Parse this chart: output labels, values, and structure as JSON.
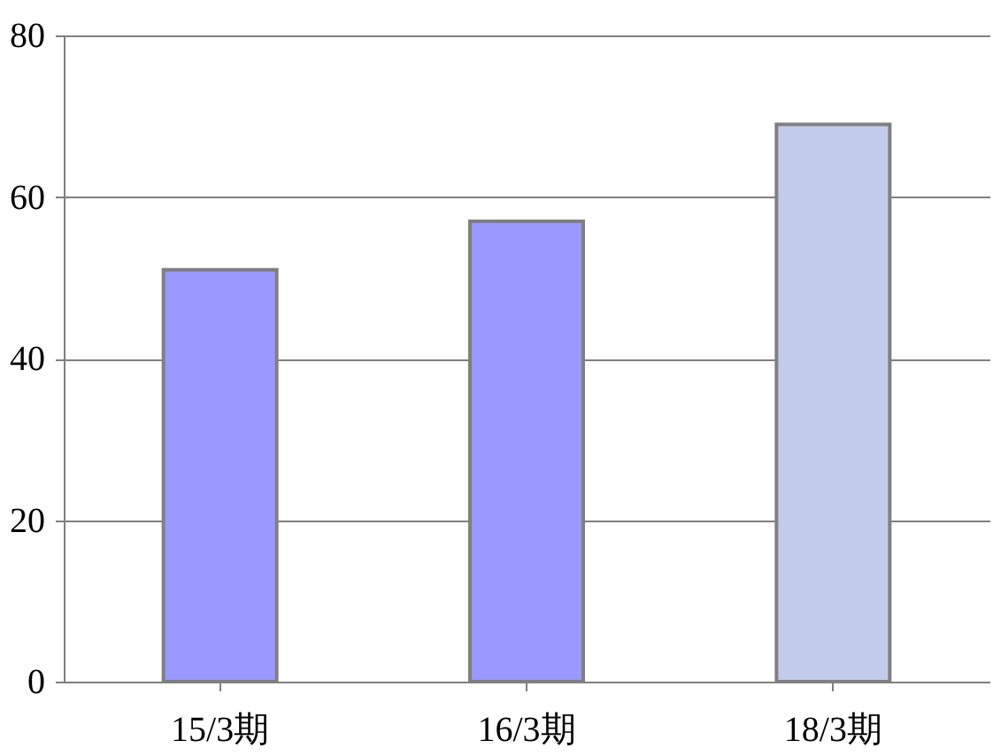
{
  "chart_data": {
    "type": "bar",
    "categories": [
      "15/3期",
      "16/3期",
      "18/3期"
    ],
    "values": [
      51,
      57,
      69
    ],
    "colors": [
      "#9999ff",
      "#9999ff",
      "#c3cbec"
    ],
    "ylim": [
      0,
      80
    ],
    "yticks": [
      0,
      20,
      40,
      60,
      80
    ],
    "grid": "y"
  }
}
